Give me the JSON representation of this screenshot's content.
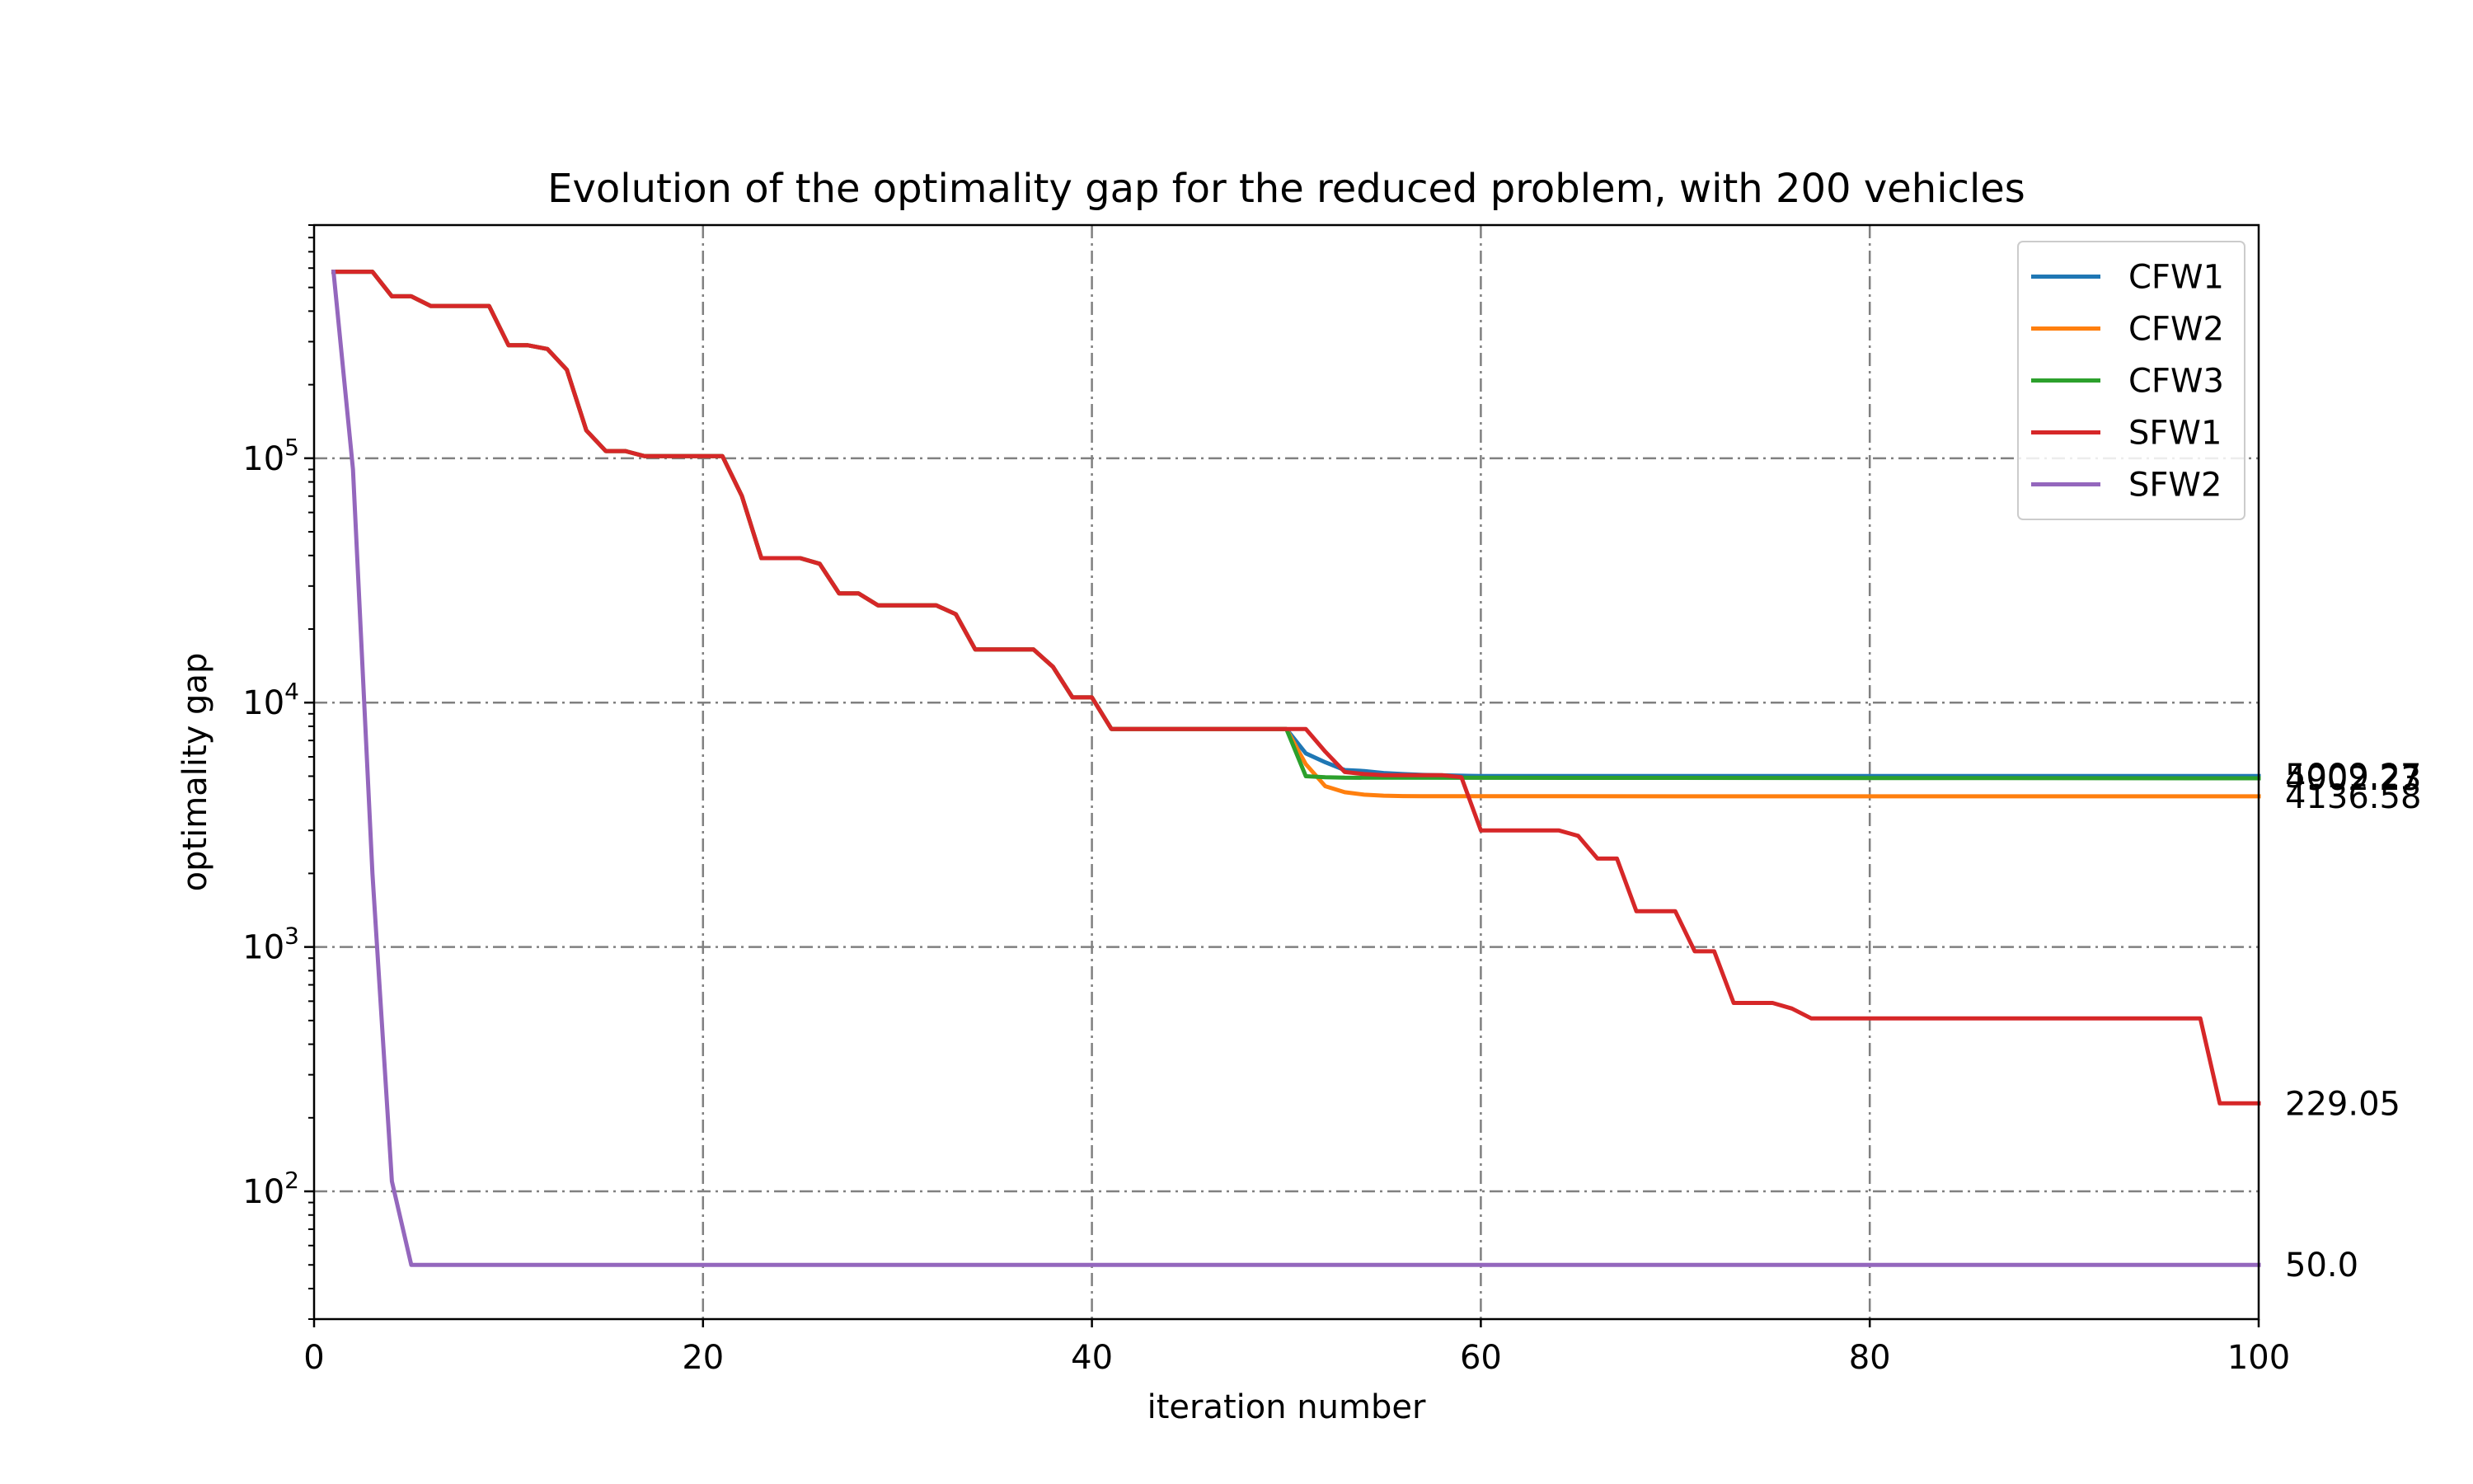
{
  "chart_data": {
    "type": "line",
    "title": "Evolution of the optimality gap for the reduced problem, with 200 vehicles",
    "xlabel": "iteration number",
    "ylabel": "optimality gap",
    "xlim": [
      0,
      100
    ],
    "ylim": [
      30,
      900000
    ],
    "yscale": "log",
    "grid": true,
    "grid_style": "dash-dot",
    "legend_position": "top-right",
    "xticks": [
      0,
      20,
      40,
      60,
      80,
      100
    ],
    "xtick_labels": [
      "0",
      "20",
      "40",
      "60",
      "80",
      "100"
    ],
    "yticks": [
      100,
      1000,
      10000,
      100000
    ],
    "ytick_bases": [
      "10",
      "10",
      "10",
      "10"
    ],
    "ytick_exponents": [
      "2",
      "3",
      "4",
      "5"
    ],
    "series": [
      {
        "name": "CFW1",
        "color": "#1f77b4",
        "x": [
          1,
          2,
          3,
          4,
          5,
          6,
          7,
          8,
          9,
          10,
          11,
          12,
          13,
          14,
          15,
          16,
          17,
          18,
          19,
          20,
          21,
          22,
          23,
          24,
          25,
          26,
          27,
          28,
          29,
          30,
          31,
          32,
          33,
          34,
          35,
          36,
          37,
          38,
          39,
          40,
          41,
          42,
          43,
          44,
          45,
          46,
          47,
          48,
          49,
          50,
          51,
          52,
          53,
          54,
          55,
          56,
          57,
          58,
          59,
          60,
          100
        ],
        "y": [
          580000,
          580000,
          580000,
          460000,
          460000,
          420000,
          420000,
          420000,
          420000,
          290000,
          290000,
          280000,
          230000,
          130000,
          107000,
          107000,
          102000,
          102000,
          102000,
          102000,
          102000,
          70000,
          39000,
          39000,
          39000,
          37000,
          28000,
          28000,
          25000,
          25000,
          25000,
          25000,
          23000,
          16500,
          16500,
          16500,
          16500,
          14000,
          10500,
          10500,
          7800,
          7800,
          7800,
          7800,
          7800,
          7800,
          7800,
          7800,
          7800,
          7800,
          6200,
          5700,
          5300,
          5250,
          5150,
          5100,
          5060,
          5040,
          5020,
          5009,
          5009.27
        ]
      },
      {
        "name": "CFW2",
        "color": "#ff7f0e",
        "x": [
          1,
          2,
          3,
          4,
          5,
          6,
          7,
          8,
          9,
          10,
          11,
          12,
          13,
          14,
          15,
          16,
          17,
          18,
          19,
          20,
          21,
          22,
          23,
          24,
          25,
          26,
          27,
          28,
          29,
          30,
          31,
          32,
          33,
          34,
          35,
          36,
          37,
          38,
          39,
          40,
          41,
          42,
          43,
          44,
          45,
          46,
          47,
          48,
          49,
          50,
          51,
          52,
          53,
          54,
          55,
          56,
          57,
          60,
          100
        ],
        "y": [
          580000,
          580000,
          580000,
          460000,
          460000,
          420000,
          420000,
          420000,
          420000,
          290000,
          290000,
          280000,
          230000,
          130000,
          107000,
          107000,
          102000,
          102000,
          102000,
          102000,
          102000,
          70000,
          39000,
          39000,
          39000,
          37000,
          28000,
          28000,
          25000,
          25000,
          25000,
          25000,
          23000,
          16500,
          16500,
          16500,
          16500,
          14000,
          10500,
          10500,
          7800,
          7800,
          7800,
          7800,
          7800,
          7800,
          7800,
          7800,
          7800,
          7800,
          5600,
          4550,
          4300,
          4200,
          4160,
          4145,
          4140,
          4137,
          4136.58
        ]
      },
      {
        "name": "CFW3",
        "color": "#2ca02c",
        "x": [
          1,
          2,
          3,
          4,
          5,
          6,
          7,
          8,
          9,
          10,
          11,
          12,
          13,
          14,
          15,
          16,
          17,
          18,
          19,
          20,
          21,
          22,
          23,
          24,
          25,
          26,
          27,
          28,
          29,
          30,
          31,
          32,
          33,
          34,
          35,
          36,
          37,
          38,
          39,
          40,
          41,
          42,
          43,
          44,
          45,
          46,
          47,
          48,
          49,
          50,
          51,
          52,
          53,
          100
        ],
        "y": [
          580000,
          580000,
          580000,
          460000,
          460000,
          420000,
          420000,
          420000,
          420000,
          290000,
          290000,
          280000,
          230000,
          130000,
          107000,
          107000,
          102000,
          102000,
          102000,
          102000,
          102000,
          70000,
          39000,
          39000,
          39000,
          37000,
          28000,
          28000,
          25000,
          25000,
          25000,
          25000,
          23000,
          16500,
          16500,
          16500,
          16500,
          14000,
          10500,
          10500,
          7800,
          7800,
          7800,
          7800,
          7800,
          7800,
          7800,
          7800,
          7800,
          7800,
          5000,
          4950,
          4930,
          4902.23
        ]
      },
      {
        "name": "SFW1",
        "color": "#d62728",
        "x": [
          1,
          2,
          3,
          4,
          5,
          6,
          7,
          8,
          9,
          10,
          11,
          12,
          13,
          14,
          15,
          16,
          17,
          18,
          19,
          20,
          21,
          22,
          23,
          24,
          25,
          26,
          27,
          28,
          29,
          30,
          31,
          32,
          33,
          34,
          35,
          36,
          37,
          38,
          39,
          40,
          41,
          42,
          43,
          44,
          45,
          46,
          47,
          48,
          49,
          50,
          51,
          52,
          53,
          54,
          55,
          56,
          57,
          58,
          59,
          60,
          61,
          62,
          63,
          64,
          65,
          66,
          67,
          68,
          69,
          70,
          71,
          72,
          73,
          74,
          75,
          76,
          77,
          78,
          79,
          80,
          81,
          82,
          83,
          84,
          85,
          86,
          87,
          88,
          89,
          90,
          91,
          92,
          93,
          94,
          95,
          96,
          97,
          98,
          99,
          100
        ],
        "y": [
          580000,
          580000,
          580000,
          460000,
          460000,
          420000,
          420000,
          420000,
          420000,
          290000,
          290000,
          280000,
          230000,
          130000,
          107000,
          107000,
          102000,
          102000,
          102000,
          102000,
          102000,
          70000,
          39000,
          39000,
          39000,
          37000,
          28000,
          28000,
          25000,
          25000,
          25000,
          25000,
          23000,
          16500,
          16500,
          16500,
          16500,
          14000,
          10500,
          10500,
          7800,
          7800,
          7800,
          7800,
          7800,
          7800,
          7800,
          7800,
          7800,
          7800,
          7800,
          6300,
          5200,
          5100,
          5050,
          5050,
          5050,
          5050,
          4950,
          3000,
          3000,
          3000,
          3000,
          3000,
          2850,
          2300,
          2300,
          1400,
          1400,
          1400,
          960,
          960,
          590,
          590,
          590,
          560,
          510,
          510,
          510,
          510,
          510,
          510,
          510,
          510,
          510,
          510,
          510,
          510,
          510,
          510,
          510,
          510,
          510,
          510,
          510,
          510,
          510,
          229.05,
          229.05,
          229.05
        ]
      },
      {
        "name": "SFW2",
        "color": "#9467bd",
        "x": [
          1,
          2,
          3,
          4,
          5,
          100
        ],
        "y": [
          580000,
          90000,
          2000,
          110,
          50,
          50.0
        ]
      }
    ],
    "end_labels": [
      {
        "series": "CFW1",
        "text": "5009.27",
        "value": 5009.27
      },
      {
        "series": "CFW3",
        "text": "4902.23",
        "value": 4902.23
      },
      {
        "series": "CFW2",
        "text": "4136.58",
        "value": 4136.58
      },
      {
        "series": "SFW1",
        "text": "229.05",
        "value": 229.05
      },
      {
        "series": "SFW2",
        "text": "50.0",
        "value": 50.0
      }
    ]
  }
}
